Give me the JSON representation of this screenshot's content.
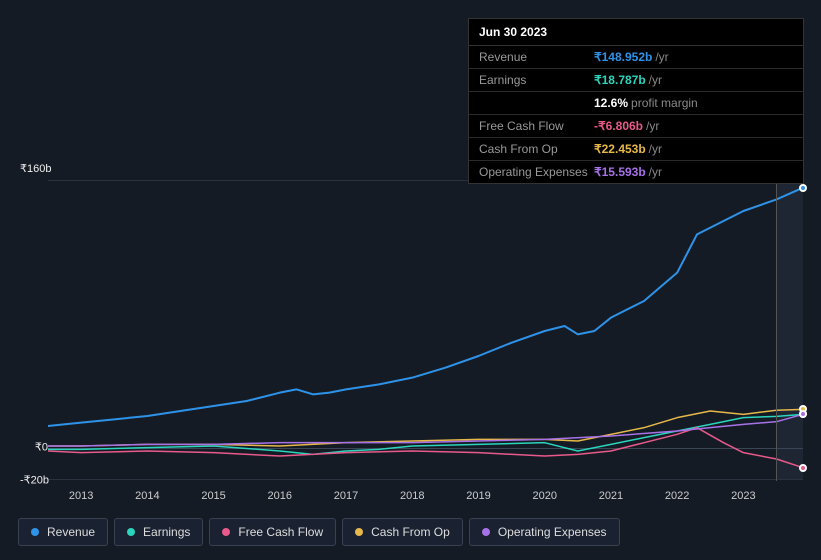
{
  "tooltip": {
    "date": "Jun 30 2023",
    "rows": [
      {
        "label": "Revenue",
        "value": "₹148.952b",
        "unit": "/yr",
        "color": "#2e93e8"
      },
      {
        "label": "Earnings",
        "value": "₹18.787b",
        "unit": "/yr",
        "color": "#2bd4bd",
        "extra_bold": "12.6%",
        "extra": "profit margin"
      },
      {
        "label": "Free Cash Flow",
        "value": "-₹6.806b",
        "unit": "/yr",
        "color": "#e85a8a"
      },
      {
        "label": "Cash From Op",
        "value": "₹22.453b",
        "unit": "/yr",
        "color": "#e6b84a"
      },
      {
        "label": "Operating Expenses",
        "value": "₹15.593b",
        "unit": "/yr",
        "color": "#a772e8"
      }
    ]
  },
  "chart": {
    "type": "line",
    "background_color": "#151b25",
    "grid_color": "#2a3240",
    "ylim": [
      -20,
      160
    ],
    "ymax_label": "₹160b",
    "yticks": [
      {
        "v": 0,
        "label": "₹0"
      },
      {
        "v": -20,
        "label": "-₹20b"
      }
    ],
    "xlim": [
      2012.5,
      2023.9
    ],
    "xticks": [
      2013,
      2014,
      2015,
      2016,
      2017,
      2018,
      2019,
      2020,
      2021,
      2022,
      2023
    ],
    "hover_x": 2023.5,
    "hover_band_color": "#1e2633",
    "series": [
      {
        "name": "Revenue",
        "color": "#2e93e8",
        "width": 2,
        "points": [
          [
            2012.5,
            13
          ],
          [
            2013,
            15
          ],
          [
            2013.5,
            17
          ],
          [
            2014,
            19
          ],
          [
            2014.5,
            22
          ],
          [
            2015,
            25
          ],
          [
            2015.5,
            28
          ],
          [
            2016,
            33
          ],
          [
            2016.25,
            35
          ],
          [
            2016.5,
            32
          ],
          [
            2016.75,
            33
          ],
          [
            2017,
            35
          ],
          [
            2017.5,
            38
          ],
          [
            2018,
            42
          ],
          [
            2018.5,
            48
          ],
          [
            2019,
            55
          ],
          [
            2019.5,
            63
          ],
          [
            2020,
            70
          ],
          [
            2020.3,
            73
          ],
          [
            2020.5,
            68
          ],
          [
            2020.75,
            70
          ],
          [
            2021,
            78
          ],
          [
            2021.5,
            88
          ],
          [
            2022,
            105
          ],
          [
            2022.3,
            128
          ],
          [
            2022.7,
            136
          ],
          [
            2023,
            142
          ],
          [
            2023.5,
            148.952
          ],
          [
            2023.9,
            156
          ]
        ]
      },
      {
        "name": "Earnings",
        "color": "#2bd4bd",
        "width": 1.5,
        "points": [
          [
            2012.5,
            -1
          ],
          [
            2013,
            -1
          ],
          [
            2014,
            0
          ],
          [
            2015,
            1
          ],
          [
            2016,
            -2
          ],
          [
            2016.5,
            -4
          ],
          [
            2017,
            -2
          ],
          [
            2017.5,
            -1
          ],
          [
            2018,
            1
          ],
          [
            2019,
            2
          ],
          [
            2020,
            3
          ],
          [
            2020.5,
            -2
          ],
          [
            2021,
            2
          ],
          [
            2021.5,
            6
          ],
          [
            2022,
            10
          ],
          [
            2022.5,
            14
          ],
          [
            2023,
            18
          ],
          [
            2023.5,
            18.787
          ],
          [
            2023.9,
            20
          ]
        ]
      },
      {
        "name": "Free Cash Flow",
        "color": "#e85a8a",
        "width": 1.5,
        "points": [
          [
            2012.5,
            -2
          ],
          [
            2013,
            -3
          ],
          [
            2014,
            -2
          ],
          [
            2015,
            -3
          ],
          [
            2016,
            -5
          ],
          [
            2017,
            -3
          ],
          [
            2018,
            -2
          ],
          [
            2019,
            -3
          ],
          [
            2020,
            -5
          ],
          [
            2020.5,
            -4
          ],
          [
            2021,
            -2
          ],
          [
            2021.5,
            3
          ],
          [
            2022,
            8
          ],
          [
            2022.3,
            12
          ],
          [
            2022.7,
            3
          ],
          [
            2023,
            -3
          ],
          [
            2023.5,
            -6.806
          ],
          [
            2023.9,
            -12
          ]
        ]
      },
      {
        "name": "Cash From Op",
        "color": "#e6b84a",
        "width": 1.5,
        "points": [
          [
            2012.5,
            1
          ],
          [
            2013,
            1
          ],
          [
            2014,
            2
          ],
          [
            2015,
            2
          ],
          [
            2016,
            1
          ],
          [
            2017,
            3
          ],
          [
            2018,
            4
          ],
          [
            2019,
            5
          ],
          [
            2020,
            5
          ],
          [
            2020.5,
            4
          ],
          [
            2021,
            8
          ],
          [
            2021.5,
            12
          ],
          [
            2022,
            18
          ],
          [
            2022.5,
            22
          ],
          [
            2023,
            20
          ],
          [
            2023.5,
            22.453
          ],
          [
            2023.9,
            23
          ]
        ]
      },
      {
        "name": "Operating Expenses",
        "color": "#a772e8",
        "width": 1.5,
        "points": [
          [
            2012.5,
            1
          ],
          [
            2013,
            1
          ],
          [
            2014,
            2
          ],
          [
            2015,
            2
          ],
          [
            2016,
            3
          ],
          [
            2017,
            3
          ],
          [
            2018,
            3
          ],
          [
            2019,
            4
          ],
          [
            2020,
            5
          ],
          [
            2021,
            7
          ],
          [
            2022,
            10
          ],
          [
            2022.5,
            12
          ],
          [
            2023,
            14
          ],
          [
            2023.5,
            15.593
          ],
          [
            2023.9,
            20
          ]
        ]
      }
    ]
  },
  "legend": [
    {
      "label": "Revenue",
      "color": "#2e93e8"
    },
    {
      "label": "Earnings",
      "color": "#2bd4bd"
    },
    {
      "label": "Free Cash Flow",
      "color": "#e85a8a"
    },
    {
      "label": "Cash From Op",
      "color": "#e6b84a"
    },
    {
      "label": "Operating Expenses",
      "color": "#a772e8"
    }
  ]
}
